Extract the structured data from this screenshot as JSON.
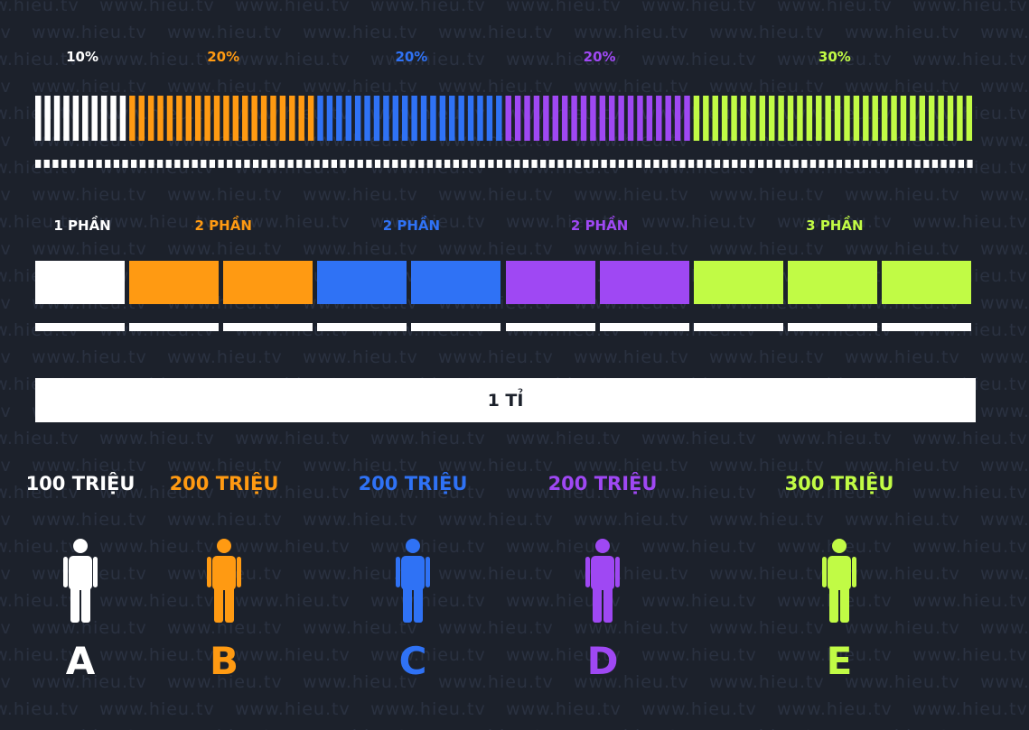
{
  "watermark": "www.hieu.tv",
  "total": "1 TỈ",
  "groups": [
    {
      "percent": "10%",
      "parts": "1 PHẦN",
      "amount": "100 TRIỆU",
      "person": "A",
      "share": 0.1,
      "part_count": 1,
      "color": "#ffffff"
    },
    {
      "percent": "20%",
      "parts": "2 PHẦN",
      "amount": "200 TRIỆU",
      "person": "B",
      "share": 0.2,
      "part_count": 2,
      "color": "#ff9a12"
    },
    {
      "percent": "20%",
      "parts": "2 PHẦN",
      "amount": "200 TRIỆU",
      "person": "C",
      "share": 0.2,
      "part_count": 2,
      "color": "#2f72f5"
    },
    {
      "percent": "20%",
      "parts": "2 PHẦN",
      "amount": "200 TRIỆU",
      "person": "D",
      "share": 0.2,
      "part_count": 2,
      "color": "#9f48f3"
    },
    {
      "percent": "30%",
      "parts": "3 PHẦN",
      "amount": "300 TRIỆU",
      "person": "E",
      "share": 0.3,
      "part_count": 3,
      "color": "#c1fb45"
    }
  ]
}
